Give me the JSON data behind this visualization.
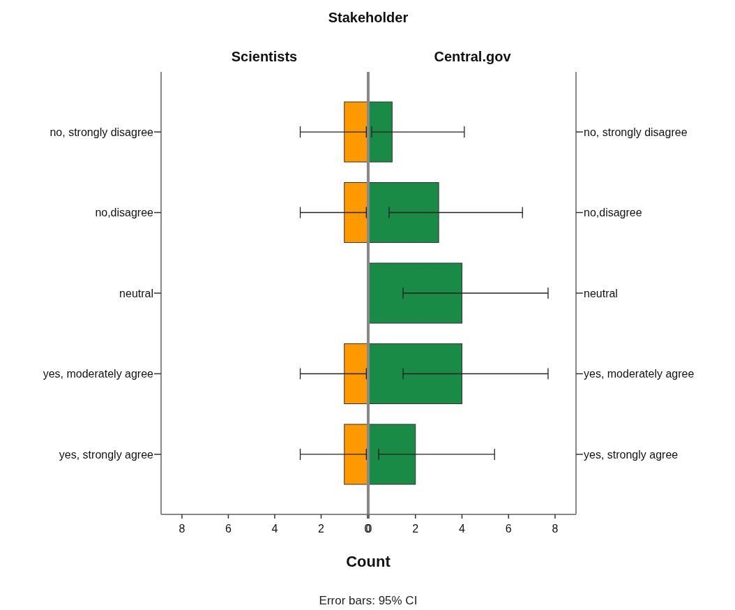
{
  "chart_data": [
    {
      "type": "bar",
      "orientation": "horizontal",
      "title": "Scientists",
      "subtitle": "Stakeholder",
      "xlabel": "Count",
      "annotations": [
        "Error bars: 95% CI"
      ],
      "categories": [
        "no, strongly disagree",
        "no,disagree",
        "neutral",
        "yes, moderately agree",
        "yes, strongly agree"
      ],
      "xlim": [
        8.9,
        0
      ],
      "xticks": [
        8,
        6,
        4,
        2,
        0
      ],
      "series": [
        {
          "color": "#ff9900",
          "values": [
            1,
            1,
            0,
            1,
            1
          ],
          "errors": [
            [
              0.05,
              2.9
            ],
            [
              0.05,
              2.9
            ],
            null,
            [
              0.05,
              2.9
            ],
            [
              0.05,
              2.9
            ]
          ]
        }
      ]
    },
    {
      "type": "bar",
      "orientation": "horizontal",
      "title": "Central.gov",
      "categories": [
        "no, strongly disagree",
        "no,disagree",
        "neutral",
        "yes, moderately agree",
        "yes, strongly agree"
      ],
      "xlim": [
        0,
        8.9
      ],
      "xticks": [
        0,
        2,
        4,
        6,
        8
      ],
      "series": [
        {
          "color": "#1a8a47",
          "values": [
            1,
            3,
            4,
            4,
            2
          ],
          "errors": [
            [
              0.12,
              4.1
            ],
            [
              0.87,
              6.6
            ],
            [
              1.47,
              7.7
            ],
            [
              1.47,
              7.7
            ],
            [
              0.42,
              5.4
            ]
          ]
        }
      ]
    }
  ]
}
